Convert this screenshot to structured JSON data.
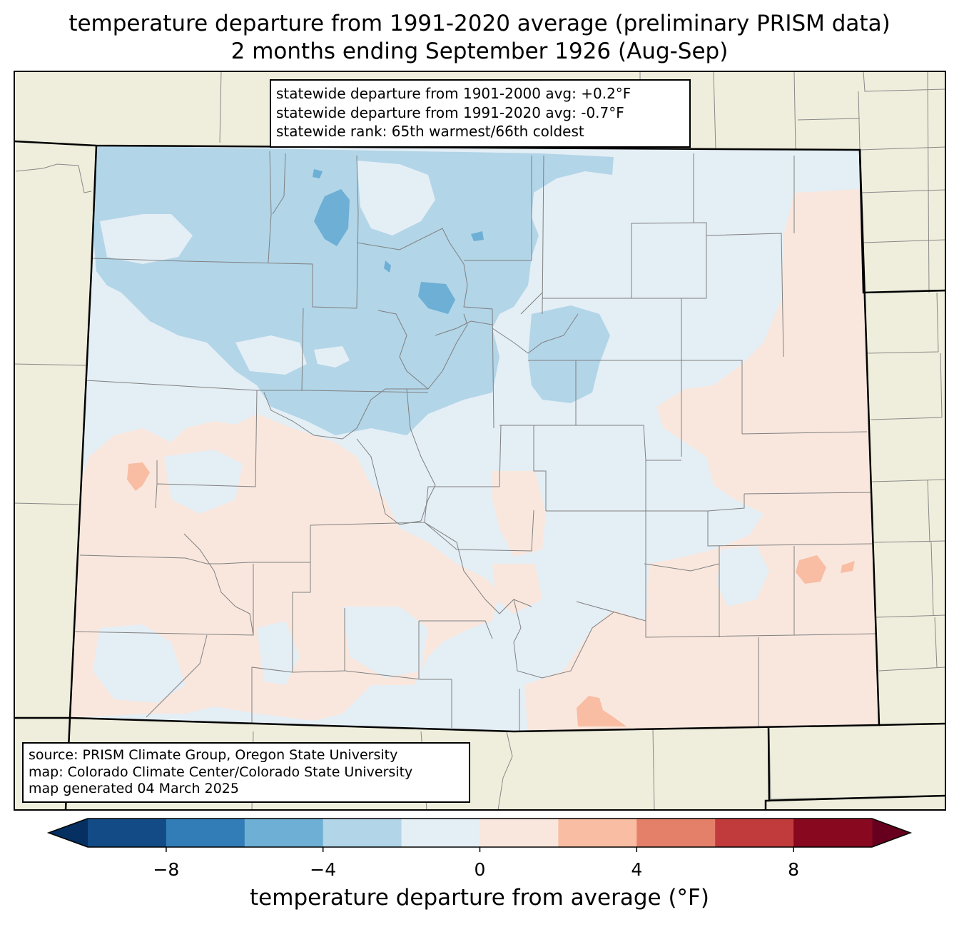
{
  "title": {
    "line1": "temperature departure from 1991-2020 average (preliminary PRISM data)",
    "line2": "2 months ending September 1926 (Aug-Sep)"
  },
  "stats": {
    "line1": "statewide departure from 1901-2000 avg: +0.2°F",
    "line2": "statewide departure from 1991-2020 avg: -0.7°F",
    "line3": "statewide rank: 65th warmest/66th coldest"
  },
  "credits": {
    "line1": "source: PRISM Climate Group, Oregon State University",
    "line2": "map: Colorado Climate Center/Colorado State University",
    "line3": "map generated 04 March 2025"
  },
  "colorbar": {
    "label": "temperature departure from average (°F)",
    "tick_labels": [
      "−8",
      "−4",
      "0",
      "4",
      "8"
    ],
    "tick_values": [
      -8,
      -4,
      0,
      4,
      8
    ],
    "range": [
      -10,
      10
    ],
    "bins": [
      {
        "from": -10,
        "to": -8,
        "color": "#134b87"
      },
      {
        "from": -8,
        "to": -6,
        "color": "#327db7"
      },
      {
        "from": -6,
        "to": -4,
        "color": "#6dafd5"
      },
      {
        "from": -4,
        "to": -2,
        "color": "#b2d5e8"
      },
      {
        "from": -2,
        "to": 0,
        "color": "#e4eef5"
      },
      {
        "from": 0,
        "to": 2,
        "color": "#f9e7de"
      },
      {
        "from": 2,
        "to": 4,
        "color": "#f8bda3"
      },
      {
        "from": 4,
        "to": 6,
        "color": "#e4806a"
      },
      {
        "from": 6,
        "to": 8,
        "color": "#c23b3c"
      },
      {
        "from": 8,
        "to": 10,
        "color": "#88091f"
      }
    ],
    "under_color": "#053061",
    "over_color": "#67001f"
  },
  "colors": {
    "background_land": "#efeedc",
    "state_fill_default": "#e4eef5",
    "cool_moderate": "#b2d5e8",
    "cool_strong": "#6dafd5",
    "warm_slight": "#f9e7de",
    "warm_moderate": "#f8bda3"
  }
}
